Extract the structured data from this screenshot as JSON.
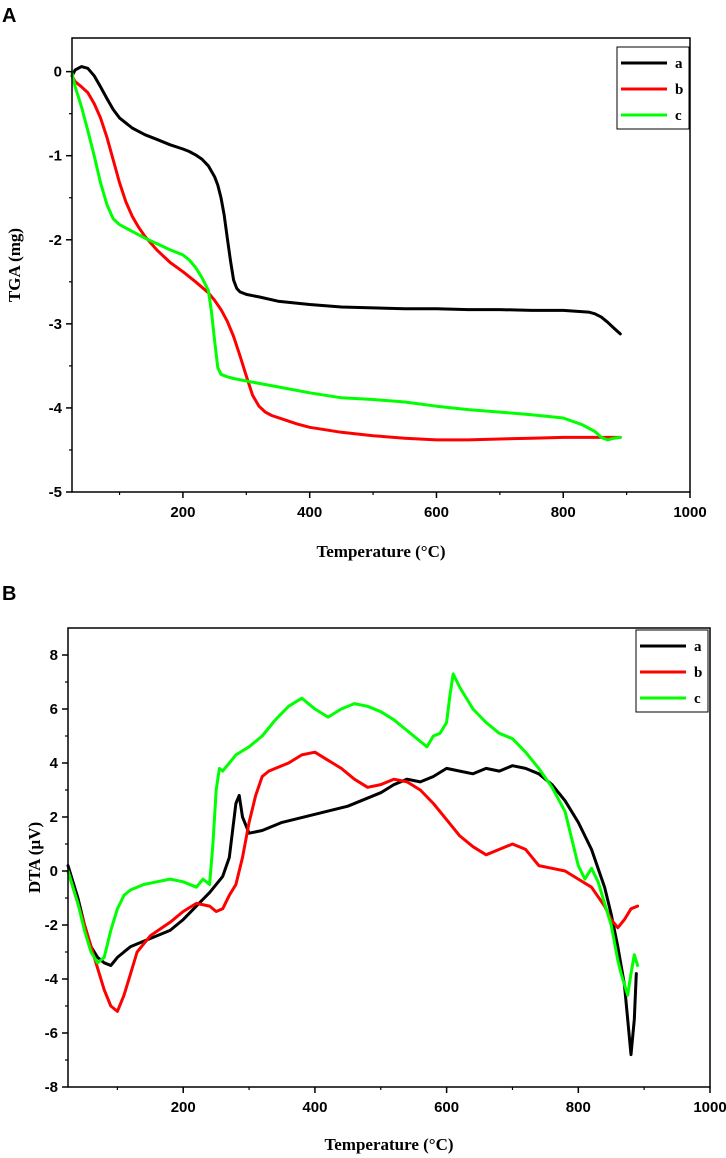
{
  "chart_data": [
    {
      "type": "line",
      "panel": "A",
      "title": "",
      "xlabel": "Temperature (°C)",
      "ylabel": "TGA (mg)",
      "xlim": [
        25,
        1000
      ],
      "ylim": [
        -5,
        0.4
      ],
      "xticks": [
        200,
        400,
        600,
        800,
        1000
      ],
      "yticks": [
        0,
        -1,
        -2,
        -3,
        -4,
        -5
      ],
      "legend_position": "top-right",
      "grid": false,
      "series": [
        {
          "name": "a",
          "color": "#000000",
          "x": [
            25,
            30,
            40,
            50,
            60,
            70,
            80,
            90,
            100,
            120,
            140,
            160,
            180,
            200,
            210,
            220,
            230,
            240,
            250,
            255,
            260,
            265,
            270,
            275,
            280,
            285,
            290,
            300,
            320,
            350,
            400,
            450,
            500,
            550,
            600,
            650,
            700,
            750,
            800,
            820,
            840,
            850,
            860,
            870,
            880,
            890
          ],
          "y": [
            -0.05,
            0.02,
            0.06,
            0.04,
            -0.05,
            -0.18,
            -0.32,
            -0.45,
            -0.55,
            -0.67,
            -0.75,
            -0.81,
            -0.87,
            -0.92,
            -0.95,
            -0.99,
            -1.04,
            -1.12,
            -1.25,
            -1.35,
            -1.5,
            -1.7,
            -1.98,
            -2.25,
            -2.48,
            -2.58,
            -2.62,
            -2.65,
            -2.68,
            -2.73,
            -2.77,
            -2.8,
            -2.81,
            -2.82,
            -2.82,
            -2.83,
            -2.83,
            -2.84,
            -2.84,
            -2.85,
            -2.86,
            -2.88,
            -2.92,
            -2.98,
            -3.05,
            -3.12
          ]
        },
        {
          "name": "b",
          "color": "#ff0000",
          "x": [
            25,
            30,
            40,
            50,
            60,
            70,
            80,
            90,
            100,
            110,
            120,
            130,
            140,
            160,
            180,
            200,
            220,
            240,
            250,
            260,
            270,
            280,
            290,
            300,
            310,
            320,
            330,
            340,
            360,
            380,
            400,
            450,
            500,
            550,
            600,
            650,
            700,
            750,
            800,
            850,
            880,
            890
          ],
          "y": [
            -0.05,
            -0.12,
            -0.18,
            -0.25,
            -0.38,
            -0.55,
            -0.78,
            -1.05,
            -1.32,
            -1.55,
            -1.72,
            -1.85,
            -1.96,
            -2.13,
            -2.27,
            -2.38,
            -2.5,
            -2.63,
            -2.72,
            -2.83,
            -2.97,
            -3.15,
            -3.38,
            -3.62,
            -3.85,
            -3.98,
            -4.05,
            -4.09,
            -4.14,
            -4.19,
            -4.23,
            -4.29,
            -4.33,
            -4.36,
            -4.38,
            -4.38,
            -4.37,
            -4.36,
            -4.35,
            -4.35,
            -4.35,
            -4.35
          ]
        },
        {
          "name": "c",
          "color": "#00ff00",
          "x": [
            25,
            30,
            40,
            50,
            60,
            70,
            80,
            90,
            100,
            120,
            140,
            160,
            180,
            200,
            210,
            220,
            230,
            240,
            245,
            250,
            255,
            260,
            270,
            280,
            300,
            350,
            400,
            450,
            500,
            550,
            600,
            650,
            700,
            750,
            800,
            830,
            850,
            860,
            870,
            880,
            890
          ],
          "y": [
            -0.02,
            -0.18,
            -0.42,
            -0.7,
            -1.0,
            -1.32,
            -1.58,
            -1.75,
            -1.82,
            -1.9,
            -1.98,
            -2.05,
            -2.12,
            -2.18,
            -2.24,
            -2.33,
            -2.45,
            -2.6,
            -2.85,
            -3.2,
            -3.52,
            -3.6,
            -3.63,
            -3.65,
            -3.68,
            -3.75,
            -3.82,
            -3.88,
            -3.9,
            -3.93,
            -3.98,
            -4.02,
            -4.05,
            -4.08,
            -4.12,
            -4.2,
            -4.28,
            -4.35,
            -4.38,
            -4.36,
            -4.35
          ]
        }
      ]
    },
    {
      "type": "line",
      "panel": "B",
      "title": "",
      "xlabel": "Temperature (°C)",
      "ylabel": "DTA (µV)",
      "xlim": [
        25,
        1000
      ],
      "ylim": [
        -8,
        9
      ],
      "xticks": [
        200,
        400,
        600,
        800,
        1000
      ],
      "yticks": [
        8,
        6,
        4,
        2,
        0,
        -2,
        -4,
        -6,
        -8
      ],
      "legend_position": "top-right",
      "grid": false,
      "series": [
        {
          "name": "a",
          "color": "#000000",
          "x": [
            25,
            40,
            50,
            60,
            70,
            80,
            90,
            100,
            120,
            150,
            180,
            200,
            220,
            240,
            260,
            270,
            275,
            280,
            285,
            290,
            300,
            320,
            350,
            400,
            450,
            500,
            520,
            540,
            560,
            580,
            600,
            620,
            640,
            660,
            680,
            700,
            720,
            740,
            760,
            780,
            800,
            820,
            840,
            850,
            860,
            870,
            875,
            880,
            885,
            888
          ],
          "y": [
            0.2,
            -1.0,
            -2.0,
            -2.8,
            -3.2,
            -3.4,
            -3.5,
            -3.2,
            -2.8,
            -2.5,
            -2.2,
            -1.8,
            -1.3,
            -0.8,
            -0.2,
            0.5,
            1.5,
            2.5,
            2.8,
            2.0,
            1.4,
            1.5,
            1.8,
            2.1,
            2.4,
            2.9,
            3.2,
            3.4,
            3.3,
            3.5,
            3.8,
            3.7,
            3.6,
            3.8,
            3.7,
            3.9,
            3.8,
            3.6,
            3.2,
            2.6,
            1.8,
            0.8,
            -0.6,
            -1.6,
            -2.8,
            -4.2,
            -5.5,
            -6.8,
            -5.5,
            -3.8
          ]
        },
        {
          "name": "b",
          "color": "#ff0000",
          "x": [
            25,
            40,
            50,
            60,
            70,
            80,
            90,
            100,
            110,
            120,
            130,
            150,
            180,
            200,
            220,
            240,
            250,
            260,
            270,
            280,
            290,
            300,
            310,
            320,
            330,
            340,
            360,
            380,
            400,
            420,
            440,
            460,
            480,
            500,
            520,
            540,
            560,
            580,
            600,
            620,
            640,
            660,
            680,
            700,
            720,
            740,
            760,
            780,
            800,
            820,
            840,
            850,
            860,
            870,
            880,
            890
          ],
          "y": [
            0.0,
            -1.2,
            -2.0,
            -2.8,
            -3.6,
            -4.4,
            -5.0,
            -5.2,
            -4.6,
            -3.8,
            -3.0,
            -2.4,
            -1.9,
            -1.5,
            -1.2,
            -1.3,
            -1.5,
            -1.4,
            -0.9,
            -0.5,
            0.5,
            1.8,
            2.8,
            3.5,
            3.7,
            3.8,
            4.0,
            4.3,
            4.4,
            4.1,
            3.8,
            3.4,
            3.1,
            3.2,
            3.4,
            3.3,
            3.0,
            2.5,
            1.9,
            1.3,
            0.9,
            0.6,
            0.8,
            1.0,
            0.8,
            0.2,
            0.1,
            0.0,
            -0.3,
            -0.6,
            -1.3,
            -1.8,
            -2.1,
            -1.8,
            -1.4,
            -1.3
          ]
        },
        {
          "name": "c",
          "color": "#00ff00",
          "x": [
            25,
            40,
            50,
            60,
            70,
            80,
            90,
            100,
            110,
            120,
            140,
            160,
            180,
            200,
            220,
            230,
            240,
            245,
            250,
            255,
            260,
            270,
            280,
            300,
            320,
            340,
            360,
            380,
            400,
            420,
            440,
            460,
            480,
            500,
            520,
            540,
            560,
            570,
            580,
            590,
            600,
            605,
            610,
            620,
            640,
            660,
            680,
            700,
            720,
            740,
            760,
            780,
            790,
            800,
            810,
            820,
            830,
            840,
            850,
            860,
            865,
            870,
            875,
            880,
            885,
            890
          ],
          "y": [
            0.0,
            -1.2,
            -2.2,
            -3.0,
            -3.4,
            -3.2,
            -2.2,
            -1.4,
            -0.9,
            -0.7,
            -0.5,
            -0.4,
            -0.3,
            -0.4,
            -0.6,
            -0.3,
            -0.5,
            1.0,
            3.0,
            3.8,
            3.7,
            4.0,
            4.3,
            4.6,
            5.0,
            5.6,
            6.1,
            6.4,
            6.0,
            5.7,
            6.0,
            6.2,
            6.1,
            5.9,
            5.6,
            5.2,
            4.8,
            4.6,
            5.0,
            5.1,
            5.5,
            6.5,
            7.3,
            6.8,
            6.0,
            5.5,
            5.1,
            4.9,
            4.4,
            3.8,
            3.1,
            2.2,
            1.2,
            0.2,
            -0.3,
            0.1,
            -0.4,
            -1.2,
            -2.0,
            -3.3,
            -3.8,
            -4.2,
            -4.6,
            -3.8,
            -3.1,
            -3.5
          ]
        }
      ]
    }
  ]
}
